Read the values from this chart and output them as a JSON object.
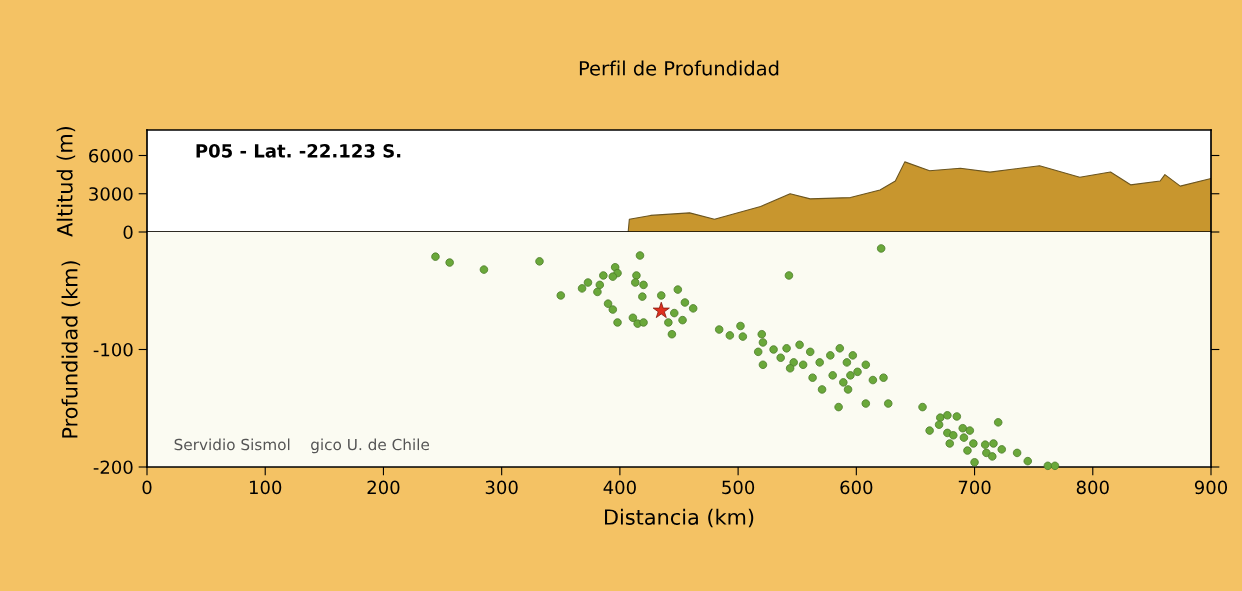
{
  "chart_data": [
    {
      "type": "area",
      "title": "Perfil de Profundidad",
      "ylabel": "Altitud (m)",
      "color": "#c8962e",
      "x": [
        0,
        407,
        408,
        426,
        459,
        480,
        519,
        544,
        561,
        595,
        620,
        633,
        641,
        662,
        688,
        713,
        730,
        755,
        789,
        815,
        832,
        857,
        861,
        874,
        900
      ],
      "values": [
        0,
        0,
        1000,
        1300,
        1500,
        1000,
        2000,
        3000,
        2600,
        2700,
        3300,
        4000,
        5500,
        4800,
        5000,
        4700,
        4900,
        5200,
        4300,
        4700,
        3700,
        4000,
        4500,
        3600,
        4200
      ],
      "xlim": [
        0,
        900
      ],
      "ylim": [
        0,
        8000
      ],
      "yticks": [
        0,
        3000,
        6000
      ],
      "tick_labels": "y",
      "annotations": [
        "P05 - Lat. -22.123 S."
      ]
    },
    {
      "type": "scatter",
      "xlabel": "Distancia (km)",
      "ylabel": "Profundidad (km)",
      "xlim": [
        0,
        900
      ],
      "ylim": [
        -200,
        0
      ],
      "xticks": [
        0,
        100,
        200,
        300,
        400,
        500,
        600,
        700,
        800,
        900
      ],
      "yticks": [
        -200,
        -100
      ],
      "annotations": [
        "Servidio Sismol    gico U. de Chile"
      ],
      "series": [
        {
          "color": "#6aa83a",
          "marker": "circle",
          "x": [
            244,
            256,
            285,
            332,
            417,
            350,
            368,
            373,
            383,
            381,
            386,
            396,
            398,
            394,
            390,
            394,
            398,
            411,
            415,
            420,
            414,
            413,
            420,
            419,
            435,
            449,
            455,
            462,
            446,
            441,
            453,
            444,
            484,
            493,
            502,
            504,
            543,
            621,
            520,
            521,
            517,
            521,
            530,
            536,
            541,
            547,
            552,
            555,
            561,
            563,
            571,
            569,
            578,
            580,
            586,
            592,
            595,
            593,
            601,
            608,
            614,
            585,
            608,
            597,
            544,
            589,
            623,
            627,
            656,
            662,
            671,
            677,
            685,
            670,
            677,
            682,
            690,
            696,
            679,
            691,
            699,
            694,
            709,
            710,
            716,
            715,
            723,
            720,
            700,
            736,
            745,
            762,
            768
          ],
          "values": [
            -21,
            -26,
            -32,
            -25,
            -20,
            -54,
            -48,
            -43,
            -45,
            -51,
            -37,
            -30,
            -35,
            -38,
            -61,
            -66,
            -77,
            -73,
            -78,
            -77,
            -37,
            -43,
            -45,
            -55,
            -54,
            -49,
            -60,
            -65,
            -69,
            -77,
            -75,
            -87,
            -83,
            -88,
            -80,
            -89,
            -37,
            -14,
            -87,
            -94,
            -102,
            -113,
            -100,
            -107,
            -99,
            -111,
            -96,
            -113,
            -102,
            -124,
            -134,
            -111,
            -105,
            -122,
            -99,
            -111,
            -122,
            -134,
            -119,
            -113,
            -126,
            -149,
            -146,
            -105,
            -116,
            -128,
            -124,
            -146,
            -149,
            -169,
            -158,
            -156,
            -157,
            -164,
            -171,
            -173,
            -167,
            -169,
            -180,
            -175,
            -180,
            -186,
            -181,
            -188,
            -180,
            -191,
            -185,
            -162,
            -196,
            -188,
            -195,
            -199,
            -199
          ]
        },
        {
          "color": "#e0301e",
          "marker": "star",
          "x": [
            435
          ],
          "values": [
            -67
          ]
        }
      ]
    }
  ]
}
